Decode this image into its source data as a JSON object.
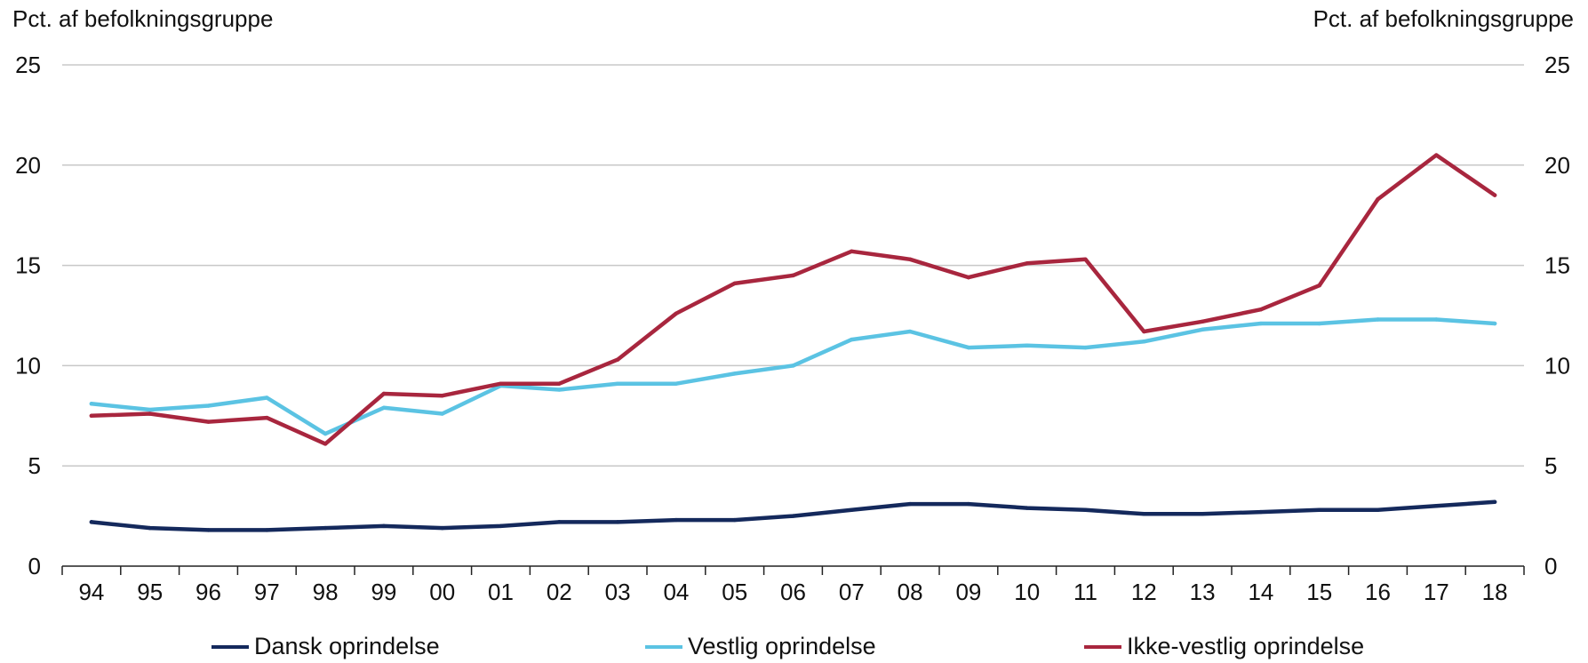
{
  "chart_data": {
    "type": "line",
    "y_unit_left": "Pct. af befolkningsgruppe",
    "y_unit_right": "Pct. af befolkningsgruppe",
    "categories": [
      "94",
      "95",
      "96",
      "97",
      "98",
      "99",
      "00",
      "01",
      "02",
      "03",
      "04",
      "05",
      "06",
      "07",
      "08",
      "09",
      "10",
      "11",
      "12",
      "13",
      "14",
      "15",
      "16",
      "17",
      "18"
    ],
    "ylim": [
      0,
      25
    ],
    "yticks": [
      "0",
      "5",
      "10",
      "15",
      "20",
      "25"
    ],
    "grid": true,
    "legend_position": "bottom",
    "series": [
      {
        "name": "Dansk oprindelse",
        "color": "#14295c",
        "values": [
          2.2,
          1.9,
          1.8,
          1.8,
          1.9,
          2.0,
          1.9,
          2.0,
          2.2,
          2.2,
          2.3,
          2.3,
          2.5,
          2.8,
          3.1,
          3.1,
          2.9,
          2.8,
          2.6,
          2.6,
          2.7,
          2.8,
          2.8,
          3.0,
          3.2
        ]
      },
      {
        "name": "Vestlig oprindelse",
        "color": "#5bc3e3",
        "values": [
          8.1,
          7.8,
          8.0,
          8.4,
          6.6,
          7.9,
          7.6,
          9.0,
          8.8,
          9.1,
          9.1,
          9.6,
          10.0,
          11.3,
          11.7,
          10.9,
          11.0,
          10.9,
          11.2,
          11.8,
          12.1,
          12.1,
          12.3,
          12.3,
          12.1
        ]
      },
      {
        "name": "Ikke-vestlig oprindelse",
        "color": "#a8263e",
        "values": [
          7.5,
          7.6,
          7.2,
          7.4,
          6.1,
          8.6,
          8.5,
          9.1,
          9.1,
          10.3,
          12.6,
          14.1,
          14.5,
          15.7,
          15.3,
          14.4,
          15.1,
          15.3,
          11.7,
          12.2,
          12.8,
          14.0,
          18.3,
          20.5,
          18.5
        ]
      }
    ]
  }
}
